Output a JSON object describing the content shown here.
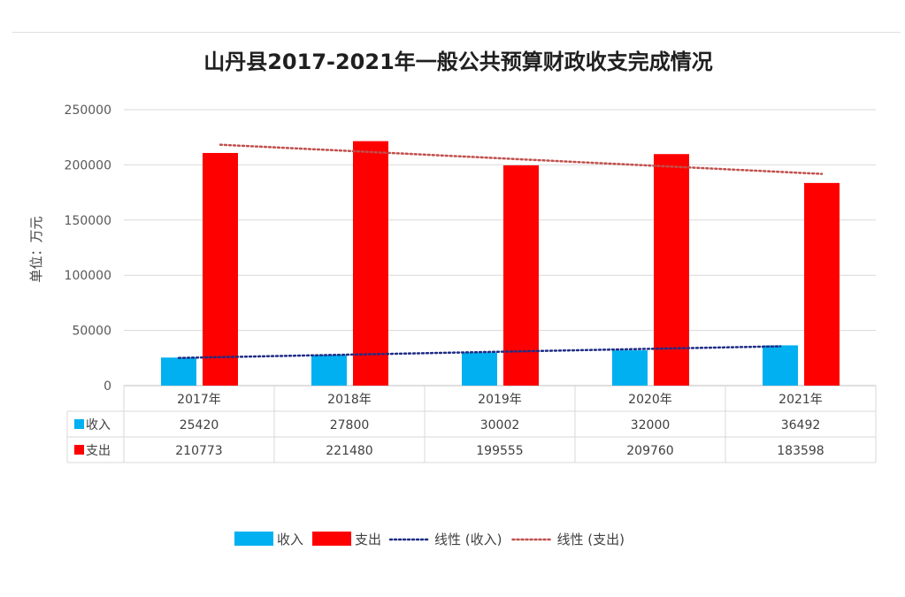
{
  "chart_data": {
    "type": "bar",
    "title": "山丹县2017-2021年一般公共预算财政收支完成情况",
    "ylabel": "单位：万元",
    "ylim": [
      0,
      250000
    ],
    "yticks": [
      0,
      50000,
      100000,
      150000,
      200000,
      250000
    ],
    "grid": true,
    "legend_position": "bottom",
    "categories": [
      "2017年",
      "2018年",
      "2019年",
      "2020年",
      "2021年"
    ],
    "series": [
      {
        "name": "收入",
        "color": "#00b0f0",
        "values": [
          25420,
          27800,
          30002,
          32000,
          36492
        ]
      },
      {
        "name": "支出",
        "color": "#ff0000",
        "values": [
          210773,
          221480,
          199555,
          209760,
          183598
        ]
      }
    ],
    "trendlines": [
      {
        "name": "线性 (收入)",
        "series": "收入",
        "color": "#1f2d86"
      },
      {
        "name": "线性 (支出)",
        "series": "支出",
        "color": "#c0504d"
      }
    ],
    "data_table": {
      "rows": [
        {
          "label": "收入",
          "values": [
            "25420",
            "27800",
            "30002",
            "32000",
            "36492"
          ]
        },
        {
          "label": "支出",
          "values": [
            "210773",
            "221480",
            "199555",
            "209760",
            "183598"
          ]
        }
      ]
    }
  }
}
